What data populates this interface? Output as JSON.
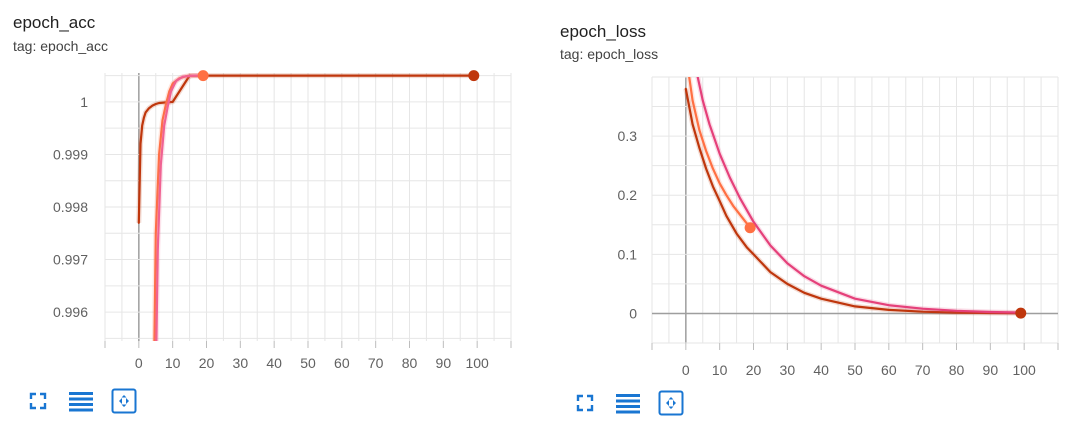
{
  "charts": [
    {
      "title": "epoch_acc",
      "tag": "tag: epoch_acc"
    },
    {
      "title": "epoch_loss",
      "tag": "tag: epoch_loss"
    }
  ],
  "toolbar": {
    "icons": [
      "fullscreen-icon",
      "toggle-log-scale-icon",
      "fit-domain-icon"
    ],
    "color": "#1976d2"
  },
  "chart_data": [
    {
      "type": "line",
      "xlim": [
        -10,
        110
      ],
      "ylim": [
        0.99545,
        1.00055
      ],
      "x_ticks": [
        0,
        10,
        20,
        30,
        40,
        50,
        60,
        70,
        80,
        90,
        100
      ],
      "x_tick_labels": [
        "0",
        "10",
        "20",
        "30",
        "40",
        "50",
        "60",
        "70",
        "80",
        "90",
        "100"
      ],
      "y_ticks": [
        0.996,
        0.997,
        0.998,
        0.999,
        1
      ],
      "y_tick_labels": [
        "0.996",
        "0.997",
        "0.998",
        "0.999",
        "1"
      ],
      "grid": true,
      "series": [
        {
          "color": "#bf360c",
          "x": [
            0,
            0.5,
            1,
            1.5,
            2,
            3,
            4,
            5,
            6,
            8,
            10,
            15,
            20,
            30,
            50,
            70,
            99
          ],
          "y": [
            0.9977,
            0.9992,
            0.99955,
            0.9997,
            0.9998,
            0.99988,
            0.99993,
            0.99996,
            0.99998,
            0.99999,
            1.0,
            1.0005,
            1.0005,
            1.0005,
            1.0005,
            1.0005,
            1.0005
          ],
          "end_marker": true
        },
        {
          "color": "#ff7043",
          "x": [
            4.6,
            5,
            6,
            7,
            8,
            9,
            10,
            12,
            14,
            16,
            19
          ],
          "y": [
            0.99545,
            0.9975,
            0.999,
            0.99965,
            0.99995,
            1.0002,
            1.00035,
            1.00045,
            1.00049,
            1.0005,
            1.0005
          ],
          "end_marker": true
        },
        {
          "color": "#f06292",
          "x": [
            5.2,
            5.6,
            6.5,
            7.5,
            8.5,
            9.5,
            11,
            13,
            16,
            19
          ],
          "y": [
            0.99545,
            0.9972,
            0.9988,
            0.99955,
            0.9999,
            1.0002,
            1.0004,
            1.00048,
            1.0005,
            1.0005
          ],
          "end_marker": false
        }
      ]
    },
    {
      "type": "line",
      "xlim": [
        -10,
        110
      ],
      "ylim": [
        -0.05,
        0.4
      ],
      "x_ticks": [
        0,
        10,
        20,
        30,
        40,
        50,
        60,
        70,
        80,
        90,
        100
      ],
      "x_tick_labels": [
        "0",
        "10",
        "20",
        "30",
        "40",
        "50",
        "60",
        "70",
        "80",
        "90",
        "100"
      ],
      "y_ticks": [
        0,
        0.1,
        0.2,
        0.3
      ],
      "y_tick_labels": [
        "0",
        "0.1",
        "0.2",
        "0.3"
      ],
      "grid": true,
      "series": [
        {
          "color": "#bf360c",
          "x": [
            0,
            2,
            4,
            6,
            8,
            10,
            12,
            15,
            18,
            20,
            25,
            30,
            35,
            40,
            50,
            60,
            70,
            80,
            90,
            99
          ],
          "y": [
            0.38,
            0.32,
            0.28,
            0.245,
            0.215,
            0.19,
            0.165,
            0.135,
            0.112,
            0.1,
            0.07,
            0.05,
            0.035,
            0.025,
            0.012,
            0.006,
            0.003,
            0.0015,
            0.0008,
            0.0005
          ],
          "end_marker": true
        },
        {
          "color": "#ff7043",
          "x": [
            1,
            2,
            4,
            6,
            8,
            10,
            12,
            14,
            16,
            19
          ],
          "y": [
            0.4,
            0.36,
            0.31,
            0.275,
            0.245,
            0.22,
            0.2,
            0.182,
            0.167,
            0.145
          ],
          "end_marker": true
        },
        {
          "color": "#e5407a",
          "x": [
            3.5,
            5,
            7,
            10,
            13,
            16,
            20,
            25,
            30,
            35,
            40,
            50,
            60,
            70,
            80,
            90,
            99
          ],
          "y": [
            0.4,
            0.36,
            0.32,
            0.27,
            0.23,
            0.195,
            0.155,
            0.115,
            0.085,
            0.063,
            0.047,
            0.025,
            0.014,
            0.008,
            0.0045,
            0.0025,
            0.0015
          ],
          "end_marker": false
        }
      ]
    }
  ]
}
